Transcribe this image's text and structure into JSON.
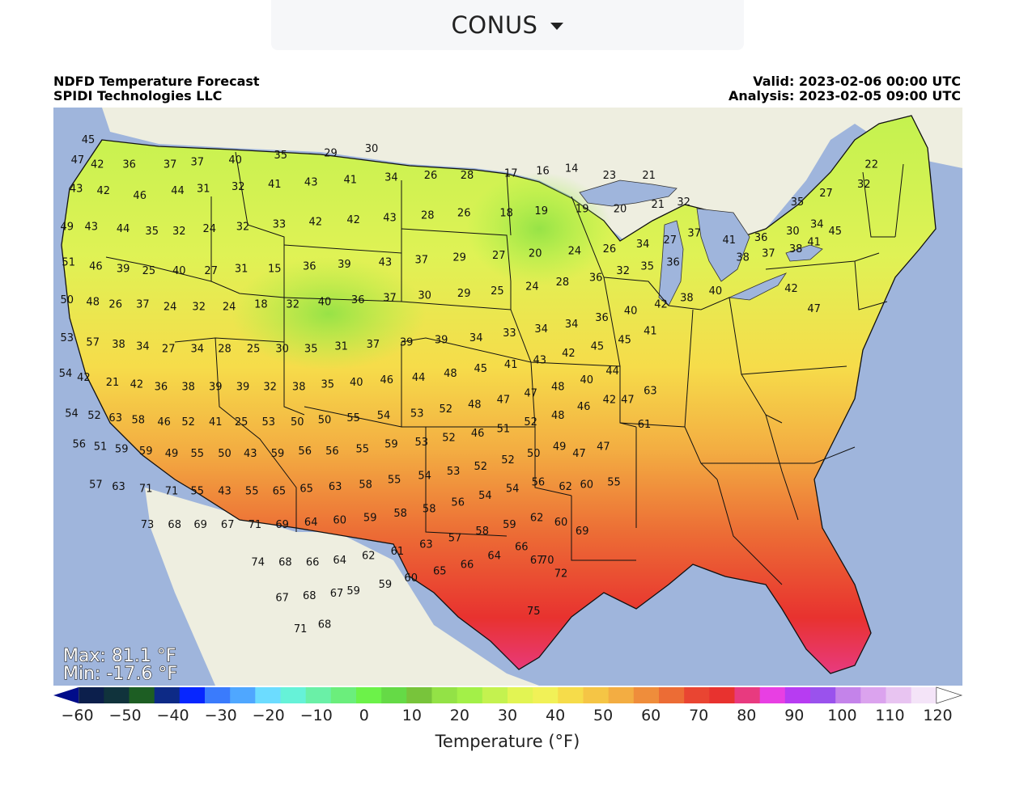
{
  "selector": {
    "label": "CONUS"
  },
  "header": {
    "title": "NDFD Temperature Forecast",
    "org": "SPIDI Technologies LLC",
    "valid": "Valid: 2023-02-06 00:00 UTC",
    "analysis": "Analysis: 2023-02-05 09:00 UTC"
  },
  "stats": {
    "max": "Max: 81.1 °F",
    "min": "Min: -17.6 °F"
  },
  "colorbar": {
    "label": "Temperature (°F)",
    "ticks": [
      "−60",
      "−50",
      "−40",
      "−30",
      "−20",
      "−10",
      "0",
      "10",
      "20",
      "30",
      "40",
      "50",
      "60",
      "70",
      "80",
      "90",
      "100",
      "110",
      "120"
    ],
    "tick_values": [
      -60,
      -50,
      -40,
      -30,
      -20,
      -10,
      0,
      10,
      20,
      30,
      40,
      50,
      60,
      70,
      80,
      90,
      100,
      110,
      120
    ],
    "range": [
      -65,
      125
    ],
    "colors": [
      "#000c8a",
      "#0c1f4c",
      "#10333c",
      "#1d5e23",
      "#0d2a86",
      "#0726ff",
      "#3a7bfc",
      "#4fa7ff",
      "#6cdcff",
      "#66f2d8",
      "#6af0a7",
      "#6bee7c",
      "#6cf249",
      "#65da46",
      "#78c43b",
      "#93e246",
      "#a3f048",
      "#c4f24f",
      "#e2f453",
      "#f1f157",
      "#f6dc4a",
      "#f5c545",
      "#f3ad42",
      "#ef8d3b",
      "#ec6c35",
      "#e94532",
      "#e8322f",
      "#e83a7f",
      "#e83fe3",
      "#b73cf2",
      "#9a52ed",
      "#c483ea",
      "#dba3ee",
      "#e8c4f1",
      "#f4e4f8",
      "#ffffff"
    ]
  },
  "legend_colors": {
    "ocean": "#9fb5dc",
    "land_foreign": "#eeeee0",
    "lakes": "#9fb5dc"
  },
  "map_labels": [
    {
      "t": "45",
      "lon": -123.2,
      "lat": 48.9
    },
    {
      "t": "47",
      "lon": -123.9,
      "lat": 48.0
    },
    {
      "t": "42",
      "lon": -122.6,
      "lat": 47.8
    },
    {
      "t": "36",
      "lon": -120.5,
      "lat": 47.8
    },
    {
      "t": "37",
      "lon": -117.8,
      "lat": 47.8
    },
    {
      "t": "37",
      "lon": -116.0,
      "lat": 47.9
    },
    {
      "t": "40",
      "lon": -113.5,
      "lat": 48.0
    },
    {
      "t": "35",
      "lon": -110.5,
      "lat": 48.2
    },
    {
      "t": "29",
      "lon": -107.2,
      "lat": 48.3
    },
    {
      "t": "30",
      "lon": -104.5,
      "lat": 48.5
    },
    {
      "t": "43",
      "lon": -124.0,
      "lat": 46.7
    },
    {
      "t": "42",
      "lon": -122.2,
      "lat": 46.6
    },
    {
      "t": "46",
      "lon": -119.8,
      "lat": 46.4
    },
    {
      "t": "44",
      "lon": -117.3,
      "lat": 46.6
    },
    {
      "t": "31",
      "lon": -115.6,
      "lat": 46.7
    },
    {
      "t": "32",
      "lon": -113.3,
      "lat": 46.8
    },
    {
      "t": "41",
      "lon": -110.9,
      "lat": 46.9
    },
    {
      "t": "43",
      "lon": -108.5,
      "lat": 47.0
    },
    {
      "t": "41",
      "lon": -105.9,
      "lat": 47.1
    },
    {
      "t": "34",
      "lon": -103.2,
      "lat": 47.2
    },
    {
      "t": "26",
      "lon": -100.6,
      "lat": 47.3
    },
    {
      "t": "28",
      "lon": -98.2,
      "lat": 47.3
    },
    {
      "t": "17",
      "lon": -95.3,
      "lat": 47.4
    },
    {
      "t": "16",
      "lon": -93.2,
      "lat": 47.5
    },
    {
      "t": "14",
      "lon": -91.3,
      "lat": 47.6
    },
    {
      "t": "23",
      "lon": -88.8,
      "lat": 47.3
    },
    {
      "t": "21",
      "lon": -86.2,
      "lat": 47.3
    },
    {
      "t": "49",
      "lon": -124.6,
      "lat": 45.0
    },
    {
      "t": "43",
      "lon": -123.0,
      "lat": 45.0
    },
    {
      "t": "44",
      "lon": -120.9,
      "lat": 44.9
    },
    {
      "t": "35",
      "lon": -119.0,
      "lat": 44.8
    },
    {
      "t": "32",
      "lon": -117.2,
      "lat": 44.8
    },
    {
      "t": "24",
      "lon": -115.2,
      "lat": 44.9
    },
    {
      "t": "32",
      "lon": -113.0,
      "lat": 45.0
    },
    {
      "t": "33",
      "lon": -110.6,
      "lat": 45.1
    },
    {
      "t": "42",
      "lon": -108.2,
      "lat": 45.2
    },
    {
      "t": "42",
      "lon": -105.7,
      "lat": 45.3
    },
    {
      "t": "43",
      "lon": -103.3,
      "lat": 45.4
    },
    {
      "t": "28",
      "lon": -100.8,
      "lat": 45.5
    },
    {
      "t": "26",
      "lon": -98.4,
      "lat": 45.6
    },
    {
      "t": "18",
      "lon": -95.6,
      "lat": 45.6
    },
    {
      "t": "19",
      "lon": -93.3,
      "lat": 45.7
    },
    {
      "t": "19",
      "lon": -90.6,
      "lat": 45.8
    },
    {
      "t": "20",
      "lon": -88.1,
      "lat": 45.8
    },
    {
      "t": "21",
      "lon": -85.6,
      "lat": 46.0
    },
    {
      "t": "32",
      "lon": -83.9,
      "lat": 46.1
    },
    {
      "t": "51",
      "lon": -124.5,
      "lat": 43.4
    },
    {
      "t": "46",
      "lon": -122.7,
      "lat": 43.2
    },
    {
      "t": "39",
      "lon": -120.9,
      "lat": 43.1
    },
    {
      "t": "25",
      "lon": -119.2,
      "lat": 43.0
    },
    {
      "t": "40",
      "lon": -117.2,
      "lat": 43.0
    },
    {
      "t": "27",
      "lon": -115.1,
      "lat": 43.0
    },
    {
      "t": "31",
      "lon": -113.1,
      "lat": 43.1
    },
    {
      "t": "15",
      "lon": -110.9,
      "lat": 43.1
    },
    {
      "t": "36",
      "lon": -108.6,
      "lat": 43.2
    },
    {
      "t": "39",
      "lon": -106.3,
      "lat": 43.3
    },
    {
      "t": "43",
      "lon": -103.6,
      "lat": 43.4
    },
    {
      "t": "37",
      "lon": -101.2,
      "lat": 43.5
    },
    {
      "t": "29",
      "lon": -98.7,
      "lat": 43.6
    },
    {
      "t": "27",
      "lon": -96.1,
      "lat": 43.7
    },
    {
      "t": "20",
      "lon": -93.7,
      "lat": 43.8
    },
    {
      "t": "24",
      "lon": -91.1,
      "lat": 43.9
    },
    {
      "t": "26",
      "lon": -88.8,
      "lat": 44.0
    },
    {
      "t": "34",
      "lon": -86.6,
      "lat": 44.2
    },
    {
      "t": "27",
      "lon": -84.8,
      "lat": 44.4
    },
    {
      "t": "37",
      "lon": -83.2,
      "lat": 44.7
    },
    {
      "t": "50",
      "lon": -124.6,
      "lat": 41.7
    },
    {
      "t": "48",
      "lon": -122.9,
      "lat": 41.6
    },
    {
      "t": "26",
      "lon": -121.4,
      "lat": 41.5
    },
    {
      "t": "37",
      "lon": -119.6,
      "lat": 41.5
    },
    {
      "t": "24",
      "lon": -117.8,
      "lat": 41.4
    },
    {
      "t": "32",
      "lon": -115.9,
      "lat": 41.4
    },
    {
      "t": "24",
      "lon": -113.9,
      "lat": 41.4
    },
    {
      "t": "18",
      "lon": -111.8,
      "lat": 41.5
    },
    {
      "t": "32",
      "lon": -109.7,
      "lat": 41.5
    },
    {
      "t": "40",
      "lon": -107.6,
      "lat": 41.6
    },
    {
      "t": "36",
      "lon": -105.4,
      "lat": 41.7
    },
    {
      "t": "37",
      "lon": -103.3,
      "lat": 41.8
    },
    {
      "t": "30",
      "lon": -101.0,
      "lat": 41.9
    },
    {
      "t": "29",
      "lon": -98.4,
      "lat": 42.0
    },
    {
      "t": "25",
      "lon": -96.2,
      "lat": 42.1
    },
    {
      "t": "24",
      "lon": -93.9,
      "lat": 42.3
    },
    {
      "t": "28",
      "lon": -91.9,
      "lat": 42.5
    },
    {
      "t": "36",
      "lon": -89.7,
      "lat": 42.7
    },
    {
      "t": "32",
      "lon": -87.9,
      "lat": 43.0
    },
    {
      "t": "35",
      "lon": -86.3,
      "lat": 43.2
    },
    {
      "t": "36",
      "lon": -84.6,
      "lat": 43.4
    },
    {
      "t": "41",
      "lon": -80.9,
      "lat": 44.4
    },
    {
      "t": "36",
      "lon": -78.8,
      "lat": 44.5
    },
    {
      "t": "30",
      "lon": -76.7,
      "lat": 44.8
    },
    {
      "t": "34",
      "lon": -75.1,
      "lat": 45.1
    },
    {
      "t": "35",
      "lon": -76.4,
      "lat": 46.1
    },
    {
      "t": "27",
      "lon": -74.5,
      "lat": 46.5
    },
    {
      "t": "22",
      "lon": -71.5,
      "lat": 47.8
    },
    {
      "t": "32",
      "lon": -72.0,
      "lat": 46.9
    },
    {
      "t": "53",
      "lon": -124.6,
      "lat": 40.0
    },
    {
      "t": "57",
      "lon": -122.9,
      "lat": 39.8
    },
    {
      "t": "38",
      "lon": -121.2,
      "lat": 39.7
    },
    {
      "t": "34",
      "lon": -119.6,
      "lat": 39.6
    },
    {
      "t": "27",
      "lon": -117.9,
      "lat": 39.5
    },
    {
      "t": "34",
      "lon": -116.0,
      "lat": 39.5
    },
    {
      "t": "28",
      "lon": -114.2,
      "lat": 39.5
    },
    {
      "t": "25",
      "lon": -112.3,
      "lat": 39.5
    },
    {
      "t": "30",
      "lon": -110.4,
      "lat": 39.5
    },
    {
      "t": "35",
      "lon": -108.5,
      "lat": 39.5
    },
    {
      "t": "31",
      "lon": -106.5,
      "lat": 39.6
    },
    {
      "t": "37",
      "lon": -104.4,
      "lat": 39.7
    },
    {
      "t": "39",
      "lon": -102.2,
      "lat": 39.8
    },
    {
      "t": "39",
      "lon": -99.9,
      "lat": 39.9
    },
    {
      "t": "34",
      "lon": -97.6,
      "lat": 40.0
    },
    {
      "t": "33",
      "lon": -95.4,
      "lat": 40.2
    },
    {
      "t": "34",
      "lon": -93.3,
      "lat": 40.4
    },
    {
      "t": "34",
      "lon": -91.3,
      "lat": 40.6
    },
    {
      "t": "36",
      "lon": -89.3,
      "lat": 40.9
    },
    {
      "t": "40",
      "lon": -87.4,
      "lat": 41.2
    },
    {
      "t": "42",
      "lon": -85.4,
      "lat": 41.5
    },
    {
      "t": "38",
      "lon": -83.7,
      "lat": 41.8
    },
    {
      "t": "40",
      "lon": -81.8,
      "lat": 42.1
    },
    {
      "t": "38",
      "lon": -80.0,
      "lat": 43.6
    },
    {
      "t": "37",
      "lon": -78.3,
      "lat": 43.8
    },
    {
      "t": "38",
      "lon": -76.5,
      "lat": 44.0
    },
    {
      "t": "41",
      "lon": -75.3,
      "lat": 44.3
    },
    {
      "t": "45",
      "lon": -73.9,
      "lat": 44.8
    },
    {
      "t": "42",
      "lon": -76.8,
      "lat": 42.2
    },
    {
      "t": "47",
      "lon": -75.3,
      "lat": 41.3
    },
    {
      "t": "54",
      "lon": -124.7,
      "lat": 38.4
    },
    {
      "t": "42",
      "lon": -123.5,
      "lat": 38.2
    },
    {
      "t": "21",
      "lon": -121.6,
      "lat": 38.0
    },
    {
      "t": "42",
      "lon": -120.0,
      "lat": 37.9
    },
    {
      "t": "36",
      "lon": -118.4,
      "lat": 37.8
    },
    {
      "t": "38",
      "lon": -116.6,
      "lat": 37.8
    },
    {
      "t": "39",
      "lon": -114.8,
      "lat": 37.8
    },
    {
      "t": "39",
      "lon": -113.0,
      "lat": 37.8
    },
    {
      "t": "32",
      "lon": -111.2,
      "lat": 37.8
    },
    {
      "t": "38",
      "lon": -109.3,
      "lat": 37.8
    },
    {
      "t": "35",
      "lon": -107.4,
      "lat": 37.9
    },
    {
      "t": "40",
      "lon": -105.5,
      "lat": 38.0
    },
    {
      "t": "46",
      "lon": -103.5,
      "lat": 38.1
    },
    {
      "t": "44",
      "lon": -101.4,
      "lat": 38.2
    },
    {
      "t": "48",
      "lon": -99.3,
      "lat": 38.4
    },
    {
      "t": "45",
      "lon": -97.3,
      "lat": 38.6
    },
    {
      "t": "41",
      "lon": -95.3,
      "lat": 38.8
    },
    {
      "t": "43",
      "lon": -93.4,
      "lat": 39.0
    },
    {
      "t": "42",
      "lon": -91.5,
      "lat": 39.3
    },
    {
      "t": "45",
      "lon": -89.6,
      "lat": 39.6
    },
    {
      "t": "45",
      "lon": -87.8,
      "lat": 39.9
    },
    {
      "t": "41",
      "lon": -86.1,
      "lat": 40.3
    },
    {
      "t": "54",
      "lon": -124.3,
      "lat": 36.6
    },
    {
      "t": "52",
      "lon": -122.8,
      "lat": 36.5
    },
    {
      "t": "63",
      "lon": -121.4,
      "lat": 36.4
    },
    {
      "t": "58",
      "lon": -119.9,
      "lat": 36.3
    },
    {
      "t": "46",
      "lon": -118.2,
      "lat": 36.2
    },
    {
      "t": "52",
      "lon": -116.6,
      "lat": 36.2
    },
    {
      "t": "41",
      "lon": -114.8,
      "lat": 36.2
    },
    {
      "t": "25",
      "lon": -113.1,
      "lat": 36.2
    },
    {
      "t": "53",
      "lon": -111.3,
      "lat": 36.2
    },
    {
      "t": "50",
      "lon": -109.4,
      "lat": 36.2
    },
    {
      "t": "50",
      "lon": -107.6,
      "lat": 36.3
    },
    {
      "t": "55",
      "lon": -105.7,
      "lat": 36.4
    },
    {
      "t": "54",
      "lon": -103.7,
      "lat": 36.5
    },
    {
      "t": "53",
      "lon": -101.5,
      "lat": 36.6
    },
    {
      "t": "52",
      "lon": -99.6,
      "lat": 36.8
    },
    {
      "t": "48",
      "lon": -97.7,
      "lat": 37.0
    },
    {
      "t": "47",
      "lon": -95.8,
      "lat": 37.2
    },
    {
      "t": "47",
      "lon": -94.0,
      "lat": 37.5
    },
    {
      "t": "48",
      "lon": -92.2,
      "lat": 37.8
    },
    {
      "t": "40",
      "lon": -90.3,
      "lat": 38.1
    },
    {
      "t": "44",
      "lon": -88.6,
      "lat": 38.5
    },
    {
      "t": "56",
      "lon": -123.8,
      "lat": 35.2
    },
    {
      "t": "51",
      "lon": -122.4,
      "lat": 35.1
    },
    {
      "t": "59",
      "lon": -121.0,
      "lat": 35.0
    },
    {
      "t": "59",
      "lon": -119.4,
      "lat": 34.9
    },
    {
      "t": "49",
      "lon": -117.7,
      "lat": 34.8
    },
    {
      "t": "55",
      "lon": -116.0,
      "lat": 34.8
    },
    {
      "t": "50",
      "lon": -114.2,
      "lat": 34.8
    },
    {
      "t": "43",
      "lon": -112.5,
      "lat": 34.8
    },
    {
      "t": "59",
      "lon": -110.7,
      "lat": 34.8
    },
    {
      "t": "56",
      "lon": -108.9,
      "lat": 34.9
    },
    {
      "t": "56",
      "lon": -107.1,
      "lat": 34.9
    },
    {
      "t": "55",
      "lon": -105.1,
      "lat": 35.0
    },
    {
      "t": "59",
      "lon": -103.2,
      "lat": 35.2
    },
    {
      "t": "53",
      "lon": -101.2,
      "lat": 35.3
    },
    {
      "t": "52",
      "lon": -99.4,
      "lat": 35.5
    },
    {
      "t": "46",
      "lon": -97.5,
      "lat": 35.7
    },
    {
      "t": "51",
      "lon": -95.8,
      "lat": 35.9
    },
    {
      "t": "52",
      "lon": -94.0,
      "lat": 36.2
    },
    {
      "t": "48",
      "lon": -92.2,
      "lat": 36.5
    },
    {
      "t": "46",
      "lon": -90.5,
      "lat": 36.9
    },
    {
      "t": "42",
      "lon": -88.8,
      "lat": 37.2
    },
    {
      "t": "47",
      "lon": -87.6,
      "lat": 37.2
    },
    {
      "t": "63",
      "lon": -86.1,
      "lat": 37.6
    },
    {
      "t": "61",
      "lon": -86.5,
      "lat": 36.1
    },
    {
      "t": "57",
      "lon": -122.7,
      "lat": 33.4
    },
    {
      "t": "63",
      "lon": -121.2,
      "lat": 33.3
    },
    {
      "t": "71",
      "lon": -119.4,
      "lat": 33.2
    },
    {
      "t": "71",
      "lon": -117.7,
      "lat": 33.1
    },
    {
      "t": "55",
      "lon": -116.0,
      "lat": 33.1
    },
    {
      "t": "43",
      "lon": -114.2,
      "lat": 33.1
    },
    {
      "t": "55",
      "lon": -112.4,
      "lat": 33.1
    },
    {
      "t": "65",
      "lon": -110.6,
      "lat": 33.1
    },
    {
      "t": "65",
      "lon": -108.8,
      "lat": 33.2
    },
    {
      "t": "63",
      "lon": -106.9,
      "lat": 33.3
    },
    {
      "t": "58",
      "lon": -104.9,
      "lat": 33.4
    },
    {
      "t": "55",
      "lon": -103.0,
      "lat": 33.6
    },
    {
      "t": "54",
      "lon": -101.0,
      "lat": 33.8
    },
    {
      "t": "53",
      "lon": -99.1,
      "lat": 34.0
    },
    {
      "t": "52",
      "lon": -97.3,
      "lat": 34.2
    },
    {
      "t": "52",
      "lon": -95.5,
      "lat": 34.5
    },
    {
      "t": "50",
      "lon": -93.8,
      "lat": 34.8
    },
    {
      "t": "49",
      "lon": -92.1,
      "lat": 35.1
    },
    {
      "t": "47",
      "lon": -90.8,
      "lat": 34.8
    },
    {
      "t": "47",
      "lon": -89.2,
      "lat": 35.1
    },
    {
      "t": "55",
      "lon": -88.5,
      "lat": 33.5
    },
    {
      "t": "73",
      "lon": -119.3,
      "lat": 31.6
    },
    {
      "t": "68",
      "lon": -117.5,
      "lat": 31.6
    },
    {
      "t": "69",
      "lon": -115.8,
      "lat": 31.6
    },
    {
      "t": "67",
      "lon": -114.0,
      "lat": 31.6
    },
    {
      "t": "71",
      "lon": -112.2,
      "lat": 31.6
    },
    {
      "t": "69",
      "lon": -110.4,
      "lat": 31.6
    },
    {
      "t": "64",
      "lon": -108.5,
      "lat": 31.7
    },
    {
      "t": "60",
      "lon": -106.6,
      "lat": 31.8
    },
    {
      "t": "59",
      "lon": -104.6,
      "lat": 31.9
    },
    {
      "t": "58",
      "lon": -102.6,
      "lat": 32.1
    },
    {
      "t": "58",
      "lon": -100.7,
      "lat": 32.3
    },
    {
      "t": "56",
      "lon": -98.8,
      "lat": 32.6
    },
    {
      "t": "54",
      "lon": -97.0,
      "lat": 32.9
    },
    {
      "t": "54",
      "lon": -95.2,
      "lat": 33.2
    },
    {
      "t": "56",
      "lon": -93.5,
      "lat": 33.5
    },
    {
      "t": "62",
      "lon": -91.7,
      "lat": 33.3
    },
    {
      "t": "60",
      "lon": -90.3,
      "lat": 33.4
    },
    {
      "t": "74",
      "lon": -112.0,
      "lat": 29.9
    },
    {
      "t": "68",
      "lon": -110.2,
      "lat": 29.9
    },
    {
      "t": "66",
      "lon": -108.4,
      "lat": 29.9
    },
    {
      "t": "64",
      "lon": -106.6,
      "lat": 30.0
    },
    {
      "t": "62",
      "lon": -104.7,
      "lat": 30.2
    },
    {
      "t": "61",
      "lon": -102.8,
      "lat": 30.4
    },
    {
      "t": "63",
      "lon": -100.9,
      "lat": 30.7
    },
    {
      "t": "57",
      "lon": -99.0,
      "lat": 31.0
    },
    {
      "t": "58",
      "lon": -97.2,
      "lat": 31.3
    },
    {
      "t": "59",
      "lon": -95.4,
      "lat": 31.6
    },
    {
      "t": "62",
      "lon": -93.6,
      "lat": 31.9
    },
    {
      "t": "60",
      "lon": -92.0,
      "lat": 31.7
    },
    {
      "t": "69",
      "lon": -90.6,
      "lat": 31.3
    },
    {
      "t": "67",
      "lon": -110.4,
      "lat": 28.3
    },
    {
      "t": "68",
      "lon": -108.6,
      "lat": 28.4
    },
    {
      "t": "67",
      "lon": -106.8,
      "lat": 28.5
    },
    {
      "t": "59",
      "lon": -105.7,
      "lat": 28.6
    },
    {
      "t": "59",
      "lon": -103.6,
      "lat": 28.9
    },
    {
      "t": "60",
      "lon": -101.9,
      "lat": 29.2
    },
    {
      "t": "65",
      "lon": -100.0,
      "lat": 29.5
    },
    {
      "t": "66",
      "lon": -98.2,
      "lat": 29.8
    },
    {
      "t": "64",
      "lon": -96.4,
      "lat": 30.2
    },
    {
      "t": "66",
      "lon": -94.6,
      "lat": 30.6
    },
    {
      "t": "67",
      "lon": -93.6,
      "lat": 30.0
    },
    {
      "t": "70",
      "lon": -92.9,
      "lat": 30.0
    },
    {
      "t": "72",
      "lon": -92.0,
      "lat": 29.4
    },
    {
      "t": "71",
      "lon": -109.2,
      "lat": 26.9
    },
    {
      "t": "68",
      "lon": -107.6,
      "lat": 27.1
    },
    {
      "t": "75",
      "lon": -93.8,
      "lat": 27.7
    }
  ]
}
